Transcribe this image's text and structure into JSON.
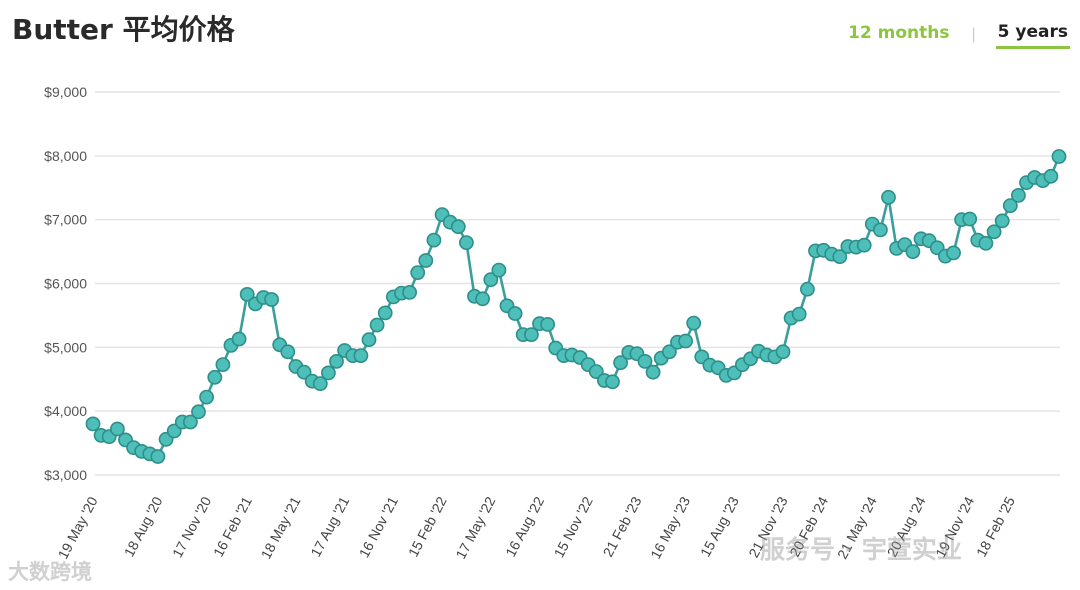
{
  "header": {
    "title": "Butter 平均价格",
    "tabs": [
      {
        "label": "12 months",
        "active": false
      },
      {
        "label": "5 years",
        "active": true
      }
    ]
  },
  "watermarks": {
    "left": "大数跨境",
    "right": "服务号 · 宇萱实业"
  },
  "colors": {
    "line": "#3a9e9b",
    "marker_fill": "#4dbfb8",
    "marker_stroke": "#2e8e8a",
    "accent": "#8cc63f",
    "grid": "#e4e4e4"
  },
  "chart_data": {
    "type": "line",
    "y_tick_labels": [
      "$3,000",
      "$4,000",
      "$5,000",
      "$6,000",
      "$7,000",
      "$8,000",
      "$9,000"
    ],
    "y_ticks": [
      3000,
      4000,
      5000,
      6000,
      7000,
      8000,
      9000
    ],
    "ylim": [
      3000,
      9000
    ],
    "x_tick_labels": [
      "19 May '20",
      "18 Aug '20",
      "17 Nov '20",
      "16 Feb '21",
      "18 May '21",
      "17 Aug '21",
      "16 Nov '21",
      "15 Feb '22",
      "17 May '22",
      "16 Aug '22",
      "15 Nov '22",
      "21 Feb '23",
      "16 May '23",
      "15 Aug '23",
      "21 Nov '23",
      "20 Feb '24",
      "21 May '24",
      "20 Aug '24",
      "19 Nov '24",
      "18 Feb '25"
    ],
    "x_tick_index": [
      0,
      8,
      14,
      19,
      25,
      31,
      37,
      43,
      49,
      55,
      61,
      67,
      73,
      79,
      85,
      90,
      96,
      102,
      108,
      113
    ],
    "grid": true,
    "series": [
      {
        "values": [
          3800,
          3620,
          3600,
          3720,
          3550,
          3430,
          3370,
          3330,
          3290,
          3560,
          3690,
          3830,
          3830,
          3990,
          4220,
          4530,
          4730,
          5030,
          5130,
          5830,
          5680,
          5780,
          5750,
          5040,
          4930,
          4700,
          4610,
          4470,
          4430,
          4600,
          4780,
          4950,
          4870,
          4870,
          5120,
          5350,
          5540,
          5790,
          5850,
          5860,
          6170,
          6360,
          6680,
          7080,
          6960,
          6890,
          6640,
          5800,
          5760,
          6060,
          6210,
          5650,
          5530,
          5200,
          5200,
          5370,
          5360,
          4990,
          4870,
          4880,
          4840,
          4730,
          4620,
          4480,
          4460,
          4760,
          4920,
          4900,
          4780,
          4610,
          4830,
          4930,
          5080,
          5100,
          5380,
          4850,
          4720,
          4680,
          4560,
          4600,
          4730,
          4820,
          4940,
          4880,
          4850,
          4930,
          5460,
          5520,
          5910,
          6510,
          6520,
          6460,
          6420,
          6580,
          6570,
          6600,
          6930,
          6840,
          7350,
          6550,
          6610,
          6500,
          6700,
          6670,
          6560,
          6430,
          6480,
          7000,
          7010,
          6680,
          6630,
          6810,
          6980,
          7220,
          7380,
          7580,
          7660,
          7610,
          7680,
          7990
        ]
      }
    ]
  }
}
